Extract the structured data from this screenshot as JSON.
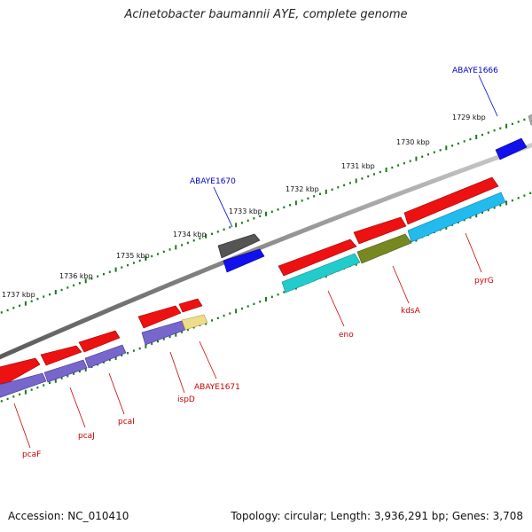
{
  "title": "Acinetobacter baumannii AYE, complete genome",
  "footer": {
    "accession": "Accession: NC_010410",
    "summary": "Topology: circular; Length: 3,936,291 bp; Genes: 3,708"
  },
  "colors": {
    "backbone": "#888888",
    "ticks": "#1a7a1a",
    "label_red": "#cc0000",
    "label_blue": "#0000cc",
    "gene_red": "#ee1111",
    "gene_purple": "#7766cc",
    "gene_teal": "#22cccc",
    "gene_olive": "#778822",
    "gene_cyan": "#22bbee",
    "gene_blue": "#1111ee",
    "gene_gray": "#555555",
    "gene_lightgray": "#aaaaaa",
    "gene_yellow": "#eedd88"
  },
  "scale_labels": [
    "1737 kbp",
    "1736 kbp",
    "1735 kbp",
    "1734 kbp",
    "1733 kbp",
    "1732 kbp",
    "1731 kbp",
    "1730 kbp",
    "1729 kbp"
  ],
  "gene_labels": [
    {
      "text": "pcaF",
      "color": "red"
    },
    {
      "text": "pcaJ",
      "color": "red"
    },
    {
      "text": "pcaI",
      "color": "red"
    },
    {
      "text": "ispD",
      "color": "red"
    },
    {
      "text": "ABAYE1671",
      "color": "red"
    },
    {
      "text": "eno",
      "color": "red"
    },
    {
      "text": "kdsA",
      "color": "red"
    },
    {
      "text": "pyrG",
      "color": "red"
    },
    {
      "text": "ABAYE1670",
      "color": "blue"
    },
    {
      "text": "ABAYE1666",
      "color": "blue"
    }
  ]
}
